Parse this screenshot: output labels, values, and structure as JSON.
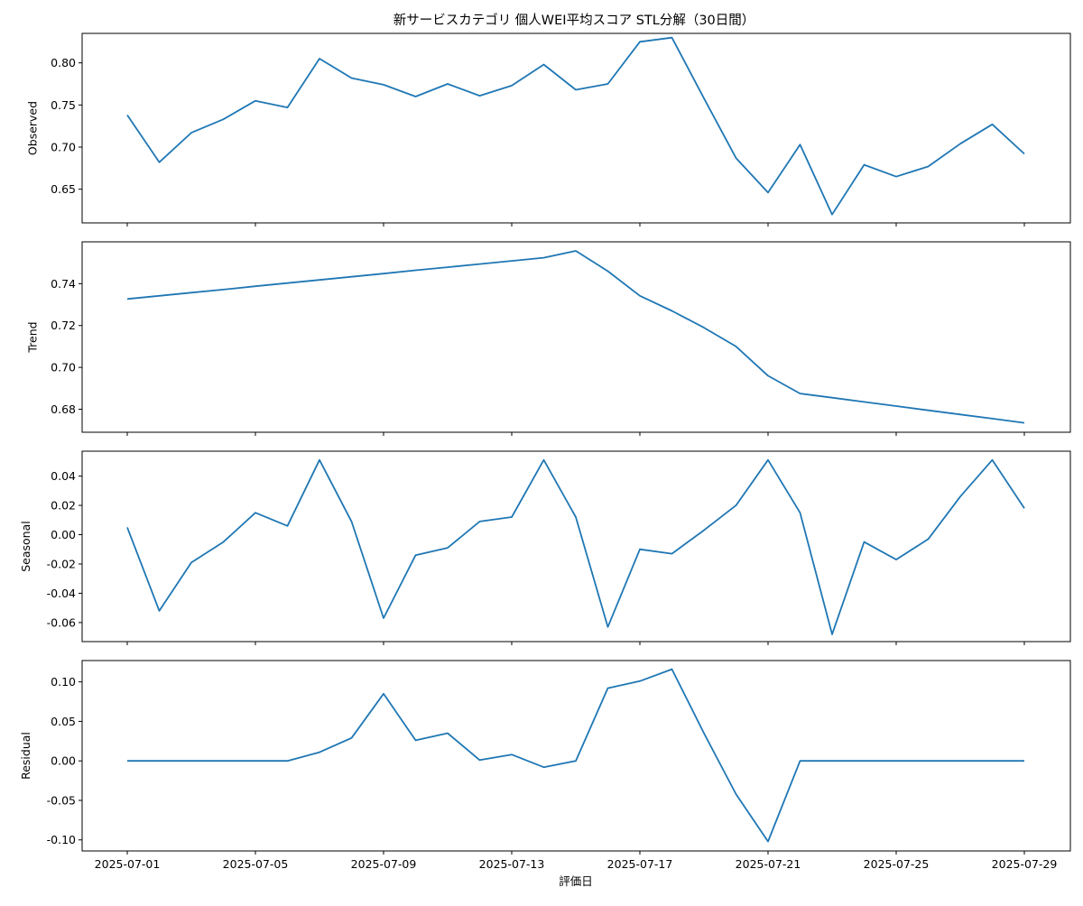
{
  "chart_data": {
    "type": "line",
    "title": "新サービスカテゴリ 個人WEI平均スコア STL分解（30日間）",
    "xlabel": "評価日",
    "x": [
      "2025-07-01",
      "2025-07-02",
      "2025-07-03",
      "2025-07-04",
      "2025-07-05",
      "2025-07-06",
      "2025-07-07",
      "2025-07-08",
      "2025-07-09",
      "2025-07-10",
      "2025-07-11",
      "2025-07-12",
      "2025-07-13",
      "2025-07-14",
      "2025-07-15",
      "2025-07-16",
      "2025-07-17",
      "2025-07-18",
      "2025-07-19",
      "2025-07-20",
      "2025-07-21",
      "2025-07-22",
      "2025-07-23",
      "2025-07-24",
      "2025-07-25",
      "2025-07-26",
      "2025-07-27",
      "2025-07-28",
      "2025-07-29"
    ],
    "x_ticks": [
      "2025-07-01",
      "2025-07-05",
      "2025-07-09",
      "2025-07-13",
      "2025-07-17",
      "2025-07-21",
      "2025-07-25",
      "2025-07-29"
    ],
    "grid": false,
    "panels": [
      {
        "name": "Observed",
        "ylabel": "Observed",
        "ylim": [
          0.61,
          0.835
        ],
        "yticks": [
          "0.65",
          "0.70",
          "0.75",
          "0.80"
        ],
        "values": [
          0.738,
          0.682,
          0.717,
          0.733,
          0.755,
          0.747,
          0.805,
          0.782,
          0.774,
          0.76,
          0.775,
          0.761,
          0.773,
          0.798,
          0.768,
          0.775,
          0.825,
          0.83,
          0.758,
          0.687,
          0.646,
          0.703,
          0.62,
          0.679,
          0.665,
          0.677,
          0.704,
          0.727,
          0.692
        ]
      },
      {
        "name": "Trend",
        "ylabel": "Trend",
        "ylim": [
          0.669,
          0.76
        ],
        "yticks": [
          "0.68",
          "0.70",
          "0.72",
          "0.74"
        ],
        "values": [
          0.7327,
          0.7342,
          0.7357,
          0.7372,
          0.7388,
          0.7403,
          0.7418,
          0.7433,
          0.7448,
          0.7464,
          0.7479,
          0.7494,
          0.7509,
          0.7524,
          0.7557,
          0.746,
          0.7342,
          0.727,
          0.719,
          0.71,
          0.696,
          0.6875,
          0.6855,
          0.6835,
          0.6815,
          0.6795,
          0.6775,
          0.6755,
          0.6735
        ]
      },
      {
        "name": "Seasonal",
        "ylabel": "Seasonal",
        "ylim": [
          -0.073,
          0.057
        ],
        "yticks": [
          "-0.06",
          "-0.04",
          "-0.02",
          "0.00",
          "0.02",
          "0.04"
        ],
        "values": [
          0.005,
          -0.052,
          -0.019,
          -0.005,
          0.015,
          0.006,
          0.051,
          0.009,
          -0.057,
          -0.014,
          -0.009,
          0.009,
          0.012,
          0.051,
          0.012,
          -0.063,
          -0.01,
          -0.013,
          0.003,
          0.02,
          0.051,
          0.015,
          -0.068,
          -0.005,
          -0.017,
          -0.003,
          0.026,
          0.051,
          0.018
        ]
      },
      {
        "name": "Residual",
        "ylabel": "Residual",
        "ylim": [
          -0.114,
          0.127
        ],
        "yticks": [
          "-0.10",
          "-0.05",
          "0.00",
          "0.05",
          "0.10"
        ],
        "values": [
          0.0,
          0.0,
          0.0,
          0.0,
          0.0,
          0.0,
          0.011,
          0.029,
          0.085,
          0.026,
          0.035,
          0.001,
          0.008,
          -0.008,
          0.0,
          0.092,
          0.101,
          0.116,
          0.035,
          -0.042,
          -0.102,
          0.0,
          0.0,
          0.0,
          0.0,
          0.0,
          0.0,
          0.0,
          0.0
        ]
      }
    ]
  }
}
